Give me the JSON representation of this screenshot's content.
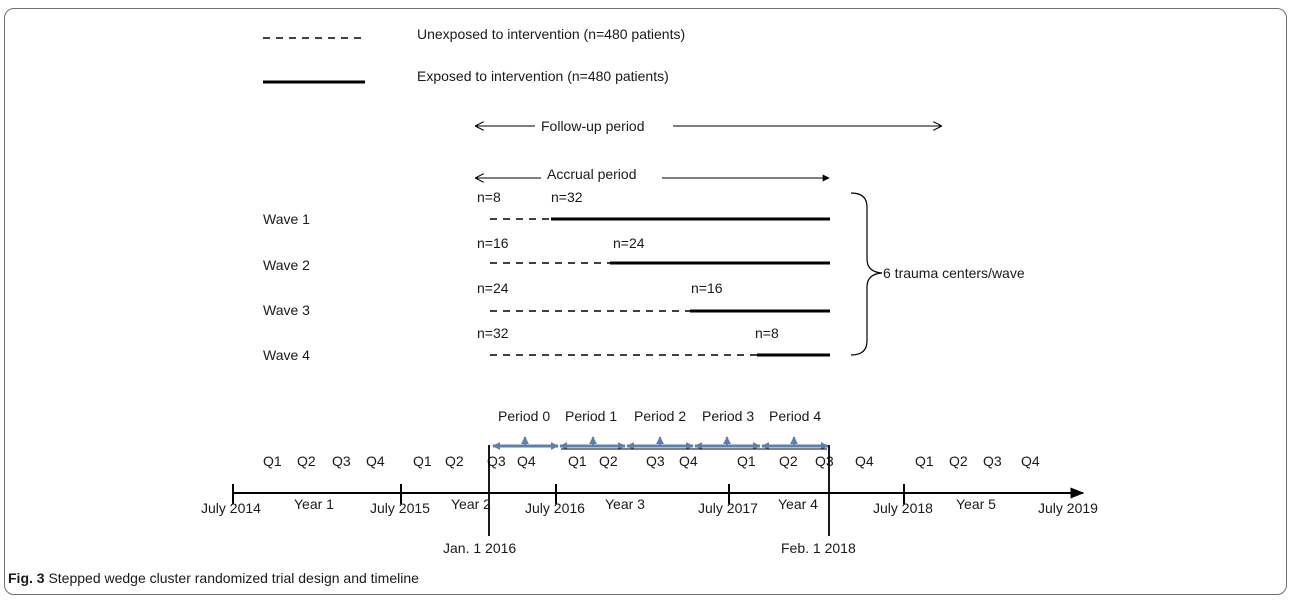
{
  "legend": {
    "unexposed": "Unexposed to intervention (n=480 patients)",
    "exposed": "Exposed to intervention (n=480 patients)"
  },
  "periods": {
    "follow_up": "Follow-up period",
    "accrual": "Accrual period"
  },
  "waves": [
    {
      "label": "Wave 1",
      "n_unexposed": "n=8",
      "n_exposed": "n=32"
    },
    {
      "label": "Wave 2",
      "n_unexposed": "n=16",
      "n_exposed": "n=24"
    },
    {
      "label": "Wave 3",
      "n_unexposed": "n=24",
      "n_exposed": "n=16"
    },
    {
      "label": "Wave 4",
      "n_unexposed": "n=32",
      "n_exposed": "n=8"
    }
  ],
  "bracket_label": "6 trauma centers/wave",
  "study_periods": [
    "Period 0",
    "Period 1",
    "Period 2",
    "Period 3",
    "Period 4"
  ],
  "quarters": [
    "Q1",
    "Q2",
    "Q3",
    "Q4",
    "Q1",
    "Q2",
    "Q3",
    "Q4",
    "Q1",
    "Q2",
    "Q3",
    "Q4",
    "Q1",
    "Q2",
    "Q3",
    "Q4",
    "Q1",
    "Q2",
    "Q3",
    "Q4"
  ],
  "timeline": {
    "dates": [
      "July 2014",
      "July 2015",
      "July 2016",
      "July 2017",
      "July 2018",
      "July 2019"
    ],
    "years": [
      "Year 1",
      "Year 2",
      "Year 3",
      "Year 4",
      "Year 5"
    ],
    "markers": [
      "Jan. 1 2016",
      "Feb. 1 2018"
    ]
  },
  "caption": {
    "label": "Fig. 3",
    "text": "Stepped wedge cluster randomized trial design and timeline"
  },
  "colors": {
    "line": "#000000",
    "period_arrow": "#5b7fae"
  }
}
